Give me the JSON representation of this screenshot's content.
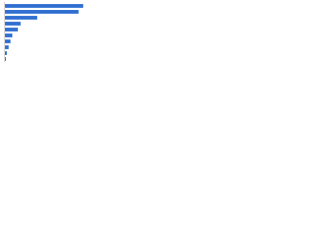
{
  "chart_data": {
    "type": "hbar",
    "categories": [
      null,
      null,
      null,
      null,
      null,
      null,
      null,
      null,
      null,
      null
    ],
    "values": [
      85,
      80,
      35,
      17,
      14,
      8,
      6,
      4,
      2,
      1
    ],
    "color": "#2f6fd1",
    "xlim": [
      0,
      100
    ]
  }
}
